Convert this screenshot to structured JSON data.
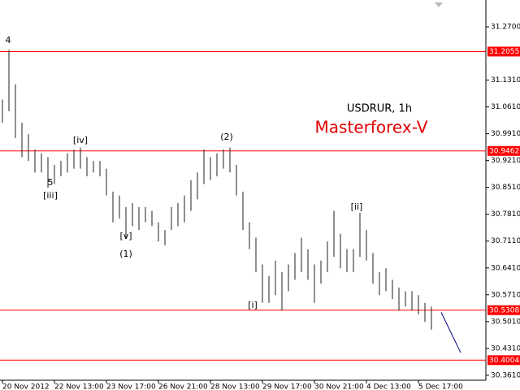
{
  "chart_data": {
    "type": "hlbar",
    "categories": [
      "20 Nov 2012",
      null,
      null,
      null,
      null,
      null,
      null,
      null,
      "22 Nov 13:00",
      null,
      null,
      null,
      null,
      null,
      null,
      null,
      "23 Nov 17:00",
      null,
      null,
      null,
      null,
      null,
      null,
      null,
      "26 Nov 21:00",
      null,
      null,
      null,
      null,
      null,
      null,
      null,
      "28 Nov 13:00",
      null,
      null,
      null,
      null,
      null,
      null,
      null,
      "29 Nov 17:00",
      null,
      null,
      null,
      null,
      null,
      null,
      null,
      "30 Nov 21:00",
      null,
      null,
      null,
      null,
      null,
      null,
      null,
      "4 Dec 13:00",
      null,
      null,
      null,
      null,
      null,
      null,
      null,
      "5 Dec 17:00",
      null,
      null
    ],
    "high": [
      31.08,
      31.21,
      31.12,
      31.02,
      30.99,
      30.95,
      30.94,
      30.93,
      30.91,
      30.92,
      30.94,
      30.95,
      30.955,
      30.93,
      30.92,
      30.92,
      30.9,
      30.84,
      30.83,
      30.8,
      30.81,
      30.8,
      30.8,
      30.79,
      30.76,
      30.74,
      30.8,
      30.81,
      30.83,
      30.87,
      30.89,
      30.95,
      30.93,
      30.94,
      30.95,
      30.955,
      30.91,
      30.84,
      30.76,
      30.72,
      30.65,
      30.62,
      30.66,
      30.63,
      30.65,
      30.68,
      30.72,
      30.69,
      30.65,
      30.66,
      30.71,
      30.79,
      30.73,
      30.69,
      30.69,
      30.785,
      30.74,
      30.68,
      30.63,
      30.64,
      30.61,
      30.59,
      30.58,
      30.58,
      30.57,
      30.55,
      30.54
    ],
    "low": [
      31.02,
      31.05,
      30.98,
      30.93,
      30.92,
      30.89,
      30.89,
      30.85,
      30.86,
      30.88,
      30.89,
      30.9,
      30.9,
      30.88,
      30.89,
      30.88,
      30.83,
      30.76,
      30.77,
      30.72,
      30.75,
      30.74,
      30.76,
      30.75,
      30.71,
      30.7,
      30.74,
      30.75,
      30.76,
      30.79,
      30.82,
      30.86,
      30.87,
      30.88,
      30.9,
      30.89,
      30.83,
      30.74,
      30.69,
      30.63,
      30.55,
      30.55,
      30.57,
      30.53,
      30.58,
      30.61,
      30.63,
      30.61,
      30.55,
      30.6,
      30.63,
      30.67,
      30.64,
      30.63,
      30.63,
      30.67,
      30.66,
      30.6,
      30.57,
      30.58,
      30.56,
      30.53,
      30.54,
      30.53,
      30.52,
      30.5,
      30.48
    ],
    "color": "#222222",
    "forecast": {
      "x": [
        67.5,
        70.5
      ],
      "values": [
        30.525,
        30.42
      ],
      "color": "#000080"
    },
    "levels": [
      {
        "value": 31.2055,
        "label": "31.2055"
      },
      {
        "value": 30.9462,
        "label": "30.9462"
      },
      {
        "value": 30.5308,
        "label": "30.5308"
      },
      {
        "value": 30.4004,
        "label": "30.4004"
      }
    ],
    "level_color": "#ff0000",
    "ylim": [
      30.348,
      31.34
    ],
    "yticks": [
      {
        "value": 31.27,
        "label": "31.2700"
      },
      {
        "value": 31.131,
        "label": "31.1310"
      },
      {
        "value": 31.061,
        "label": "31.0610"
      },
      {
        "value": 30.991,
        "label": "30.9910"
      },
      {
        "value": 30.921,
        "label": "30.9210"
      },
      {
        "value": 30.851,
        "label": "30.8510"
      },
      {
        "value": 30.781,
        "label": "30.7810"
      },
      {
        "value": 30.711,
        "label": "30.7110"
      },
      {
        "value": 30.641,
        "label": "30.6410"
      },
      {
        "value": 30.571,
        "label": "30.5710"
      },
      {
        "value": 30.501,
        "label": "30.5010"
      },
      {
        "value": 30.431,
        "label": "30.4310"
      },
      {
        "value": 30.361,
        "label": "30.3610"
      }
    ],
    "annotations": [
      "4",
      "5",
      "[iii]",
      "[iv]",
      "[v]",
      "(1)",
      "(2)",
      "[i]",
      "[ii]"
    ],
    "symbol_label": "USDRUR, 1h",
    "brand": "Masterforex-V"
  }
}
